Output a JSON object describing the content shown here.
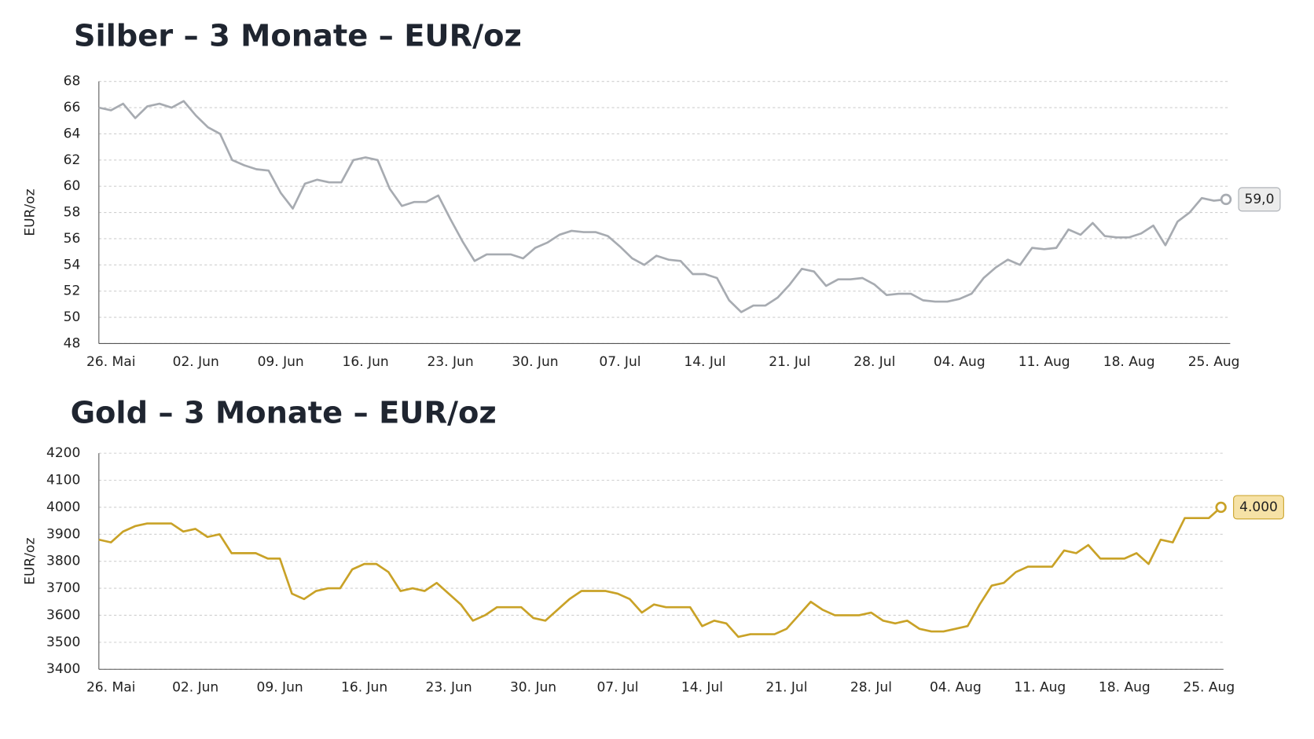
{
  "chart_data": [
    {
      "type": "line",
      "title": "Silber – 3 Monate – EUR/oz",
      "y_label": "EUR/oz",
      "color": "#a7abb1",
      "grid": true,
      "categories": [
        null,
        "26. Mai",
        null,
        null,
        null,
        null,
        null,
        null,
        "02. Jun",
        null,
        null,
        null,
        null,
        null,
        null,
        "09. Jun",
        null,
        null,
        null,
        null,
        null,
        null,
        "16. Jun",
        null,
        null,
        null,
        null,
        null,
        null,
        "23. Jun",
        null,
        null,
        null,
        null,
        null,
        null,
        "30. Jun",
        null,
        null,
        null,
        null,
        null,
        null,
        "07. Jul",
        null,
        null,
        null,
        null,
        null,
        null,
        "14. Jul",
        null,
        null,
        null,
        null,
        null,
        null,
        "21. Jul",
        null,
        null,
        null,
        null,
        null,
        null,
        "28. Jul",
        null,
        null,
        null,
        null,
        null,
        null,
        "04. Aug",
        null,
        null,
        null,
        null,
        null,
        null,
        "11. Aug",
        null,
        null,
        null,
        null,
        null,
        null,
        "18. Aug",
        null,
        null,
        null,
        null,
        null,
        null,
        "25. Aug",
        null
      ],
      "values": [
        66.0,
        65.8,
        66.3,
        65.2,
        66.1,
        66.3,
        66.0,
        66.5,
        65.4,
        64.5,
        64.0,
        62.0,
        61.6,
        61.3,
        61.2,
        59.5,
        58.3,
        60.2,
        60.5,
        60.3,
        60.3,
        62.0,
        62.2,
        62.0,
        59.8,
        58.5,
        58.8,
        58.8,
        59.3,
        57.5,
        55.8,
        54.3,
        54.8,
        54.8,
        54.8,
        54.5,
        55.3,
        55.7,
        56.3,
        56.6,
        56.5,
        56.5,
        56.2,
        55.4,
        54.5,
        54.0,
        54.7,
        54.4,
        54.3,
        53.3,
        53.3,
        53.0,
        51.3,
        50.4,
        50.9,
        50.9,
        51.5,
        52.5,
        53.7,
        53.5,
        52.4,
        52.9,
        52.9,
        53.0,
        52.5,
        51.7,
        51.8,
        51.8,
        51.3,
        51.2,
        51.2,
        51.4,
        51.8,
        53.0,
        53.8,
        54.4,
        54.0,
        55.3,
        55.2,
        55.3,
        56.7,
        56.3,
        57.2,
        56.2,
        56.1,
        56.1,
        56.4,
        57.0,
        55.5,
        57.3,
        58.0,
        59.1,
        58.9,
        59.0
      ],
      "value_labels": [
        null,
        null,
        null,
        null,
        null,
        null,
        null,
        null,
        null,
        null,
        null,
        null,
        null,
        null,
        null,
        null,
        null,
        null,
        null,
        null,
        null,
        null,
        null,
        null,
        null,
        null,
        null,
        null,
        null,
        null,
        null,
        null,
        null,
        null,
        null,
        null,
        null,
        null,
        null,
        null,
        null,
        null,
        null,
        null,
        null,
        null,
        null,
        null,
        null,
        null,
        null,
        null,
        null,
        null,
        null,
        null,
        null,
        null,
        null,
        null,
        null,
        null,
        null,
        null,
        null,
        null,
        null,
        null,
        null,
        null,
        null,
        null,
        null,
        null,
        null,
        null,
        null,
        null,
        null,
        null,
        null,
        null,
        null,
        null,
        null,
        null,
        null,
        null,
        null,
        null,
        null,
        null,
        null,
        "59,0"
      ],
      "ylim": [
        48,
        68
      ],
      "yticks": [
        48,
        50,
        52,
        54,
        56,
        58,
        60,
        62,
        64,
        66,
        68
      ]
    },
    {
      "type": "line",
      "title": "Gold – 3 Monate – EUR/oz",
      "y_label": "EUR/oz",
      "color": "#c9a227",
      "grid": true,
      "categories": [
        null,
        "26. Mai",
        null,
        null,
        null,
        null,
        null,
        null,
        "02. Jun",
        null,
        null,
        null,
        null,
        null,
        null,
        "09. Jun",
        null,
        null,
        null,
        null,
        null,
        null,
        "16. Jun",
        null,
        null,
        null,
        null,
        null,
        null,
        "23. Jun",
        null,
        null,
        null,
        null,
        null,
        null,
        "30. Jun",
        null,
        null,
        null,
        null,
        null,
        null,
        "07. Jul",
        null,
        null,
        null,
        null,
        null,
        null,
        "14. Jul",
        null,
        null,
        null,
        null,
        null,
        null,
        "21. Jul",
        null,
        null,
        null,
        null,
        null,
        null,
        "28. Jul",
        null,
        null,
        null,
        null,
        null,
        null,
        "04. Aug",
        null,
        null,
        null,
        null,
        null,
        null,
        "11. Aug",
        null,
        null,
        null,
        null,
        null,
        null,
        "18. Aug",
        null,
        null,
        null,
        null,
        null,
        null,
        "25. Aug",
        null
      ],
      "values": [
        3880,
        3870,
        3910,
        3930,
        3940,
        3940,
        3940,
        3910,
        3920,
        3890,
        3900,
        3830,
        3830,
        3830,
        3810,
        3810,
        3680,
        3660,
        3690,
        3700,
        3700,
        3770,
        3790,
        3790,
        3760,
        3690,
        3700,
        3690,
        3720,
        3680,
        3640,
        3580,
        3600,
        3630,
        3630,
        3630,
        3590,
        3580,
        3620,
        3660,
        3690,
        3690,
        3690,
        3680,
        3660,
        3610,
        3640,
        3630,
        3630,
        3630,
        3560,
        3580,
        3570,
        3520,
        3530,
        3530,
        3530,
        3550,
        3600,
        3650,
        3620,
        3600,
        3600,
        3600,
        3610,
        3580,
        3570,
        3580,
        3550,
        3540,
        3540,
        3550,
        3560,
        3640,
        3710,
        3720,
        3760,
        3780,
        3780,
        3780,
        3840,
        3830,
        3860,
        3810,
        3810,
        3810,
        3830,
        3790,
        3880,
        3870,
        3960,
        3960,
        3960,
        4000
      ],
      "value_labels": [
        null,
        null,
        null,
        null,
        null,
        null,
        null,
        null,
        null,
        null,
        null,
        null,
        null,
        null,
        null,
        null,
        null,
        null,
        null,
        null,
        null,
        null,
        null,
        null,
        null,
        null,
        null,
        null,
        null,
        null,
        null,
        null,
        null,
        null,
        null,
        null,
        null,
        null,
        null,
        null,
        null,
        null,
        null,
        null,
        null,
        null,
        null,
        null,
        null,
        null,
        null,
        null,
        null,
        null,
        null,
        null,
        null,
        null,
        null,
        null,
        null,
        null,
        null,
        null,
        null,
        null,
        null,
        null,
        null,
        null,
        null,
        null,
        null,
        null,
        null,
        null,
        null,
        null,
        null,
        null,
        null,
        null,
        null,
        null,
        null,
        null,
        null,
        null,
        null,
        null,
        null,
        null,
        null,
        "4.000"
      ],
      "ylim": [
        3400,
        4200
      ],
      "yticks": [
        3400,
        3500,
        3600,
        3700,
        3800,
        3900,
        4000,
        4100,
        4200
      ]
    }
  ]
}
